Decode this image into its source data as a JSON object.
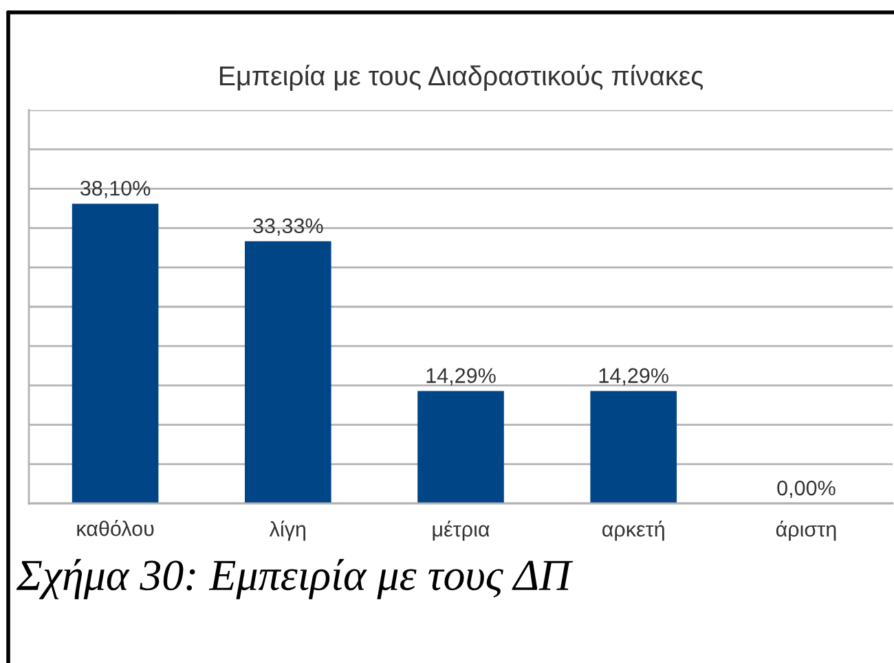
{
  "chart_data": {
    "type": "bar",
    "title": "Εμπειρία με τους Διαδραστικούς πίνακες",
    "categories": [
      "καθόλου",
      "λίγη",
      "μέτρια",
      "αρκετή",
      "άριστη"
    ],
    "values": [
      38.1,
      33.33,
      14.29,
      14.29,
      0.0
    ],
    "value_labels": [
      "38,10%",
      "33,33%",
      "14,29%",
      "14,29%",
      "0,00%"
    ],
    "color": "#004586",
    "ylim": [
      0,
      50
    ],
    "yticks": [
      {
        "value": 0,
        "label": null
      },
      {
        "value": 5,
        "label": null
      },
      {
        "value": 10,
        "label": null
      },
      {
        "value": 15,
        "label": null
      },
      {
        "value": 20,
        "label": null
      },
      {
        "value": 25,
        "label": null
      },
      {
        "value": 30,
        "label": null
      },
      {
        "value": 35,
        "label": null
      },
      {
        "value": 40,
        "label": null
      },
      {
        "value": 45,
        "label": null
      },
      {
        "value": 50,
        "label": null
      }
    ],
    "grid": "y",
    "tick_labels": "x",
    "annotations": [
      "Σχήμα 30: Εμπειρία με τους ΔΠ"
    ]
  }
}
